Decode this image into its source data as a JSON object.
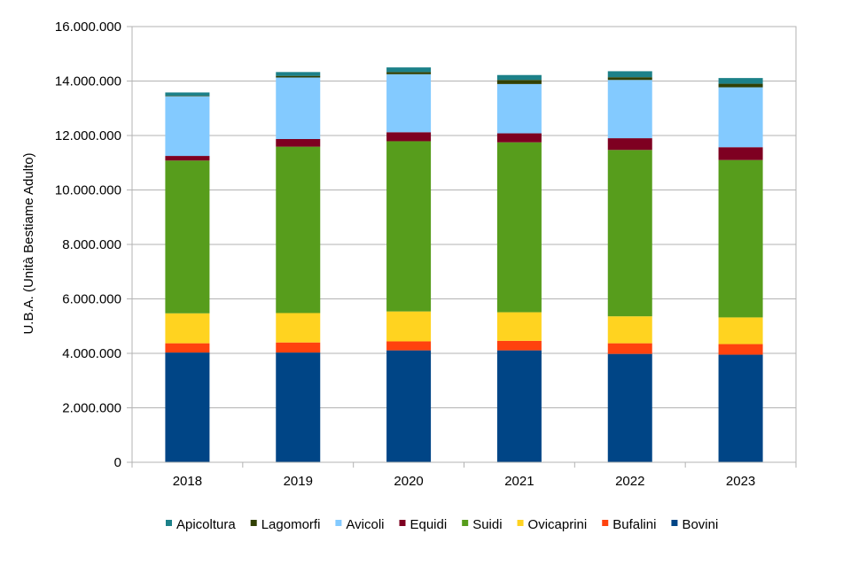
{
  "chart_data": {
    "type": "bar",
    "stacked": true,
    "title": "",
    "xlabel": "",
    "ylabel": "U.B.A. (Unità Bestiame Adulto)",
    "categories": [
      "2018",
      "2019",
      "2020",
      "2021",
      "2022",
      "2023"
    ],
    "ylim": [
      0,
      16000000
    ],
    "yticks": [
      0,
      2000000,
      4000000,
      6000000,
      8000000,
      10000000,
      12000000,
      14000000,
      16000000
    ],
    "ytick_labels": [
      "0",
      "2.000.000",
      "4.000.000",
      "6.000.000",
      "8.000.000",
      "10.000.000",
      "12.000.000",
      "14.000.000",
      "16.000.000"
    ],
    "grid": true,
    "legend_position": "bottom",
    "series": [
      {
        "name": "Bovini",
        "color": "#004586",
        "values": [
          4030000,
          4030000,
          4110000,
          4110000,
          3980000,
          3950000
        ]
      },
      {
        "name": "Bufalini",
        "color": "#ff420e",
        "values": [
          340000,
          370000,
          330000,
          350000,
          390000,
          390000
        ]
      },
      {
        "name": "Ovicaprini",
        "color": "#ffd320",
        "values": [
          1100000,
          1080000,
          1100000,
          1050000,
          990000,
          980000
        ]
      },
      {
        "name": "Suidi",
        "color": "#579d1c",
        "values": [
          5610000,
          6110000,
          6250000,
          6240000,
          6110000,
          5780000
        ]
      },
      {
        "name": "Equidi",
        "color": "#7e0021",
        "values": [
          170000,
          280000,
          330000,
          330000,
          430000,
          470000
        ]
      },
      {
        "name": "Avicoli",
        "color": "#83caff",
        "values": [
          2190000,
          2260000,
          2130000,
          1810000,
          2140000,
          2200000
        ]
      },
      {
        "name": "Lagomorfi",
        "color": "#314004",
        "values": [
          20000,
          60000,
          80000,
          150000,
          100000,
          130000
        ]
      },
      {
        "name": "Apicoltura",
        "color": "#1c8189",
        "values": [
          120000,
          140000,
          170000,
          180000,
          220000,
          210000
        ]
      }
    ],
    "legend_order": [
      "Apicoltura",
      "Lagomorfi",
      "Avicoli",
      "Equidi",
      "Suidi",
      "Ovicaprini",
      "Bufalini",
      "Bovini"
    ]
  }
}
